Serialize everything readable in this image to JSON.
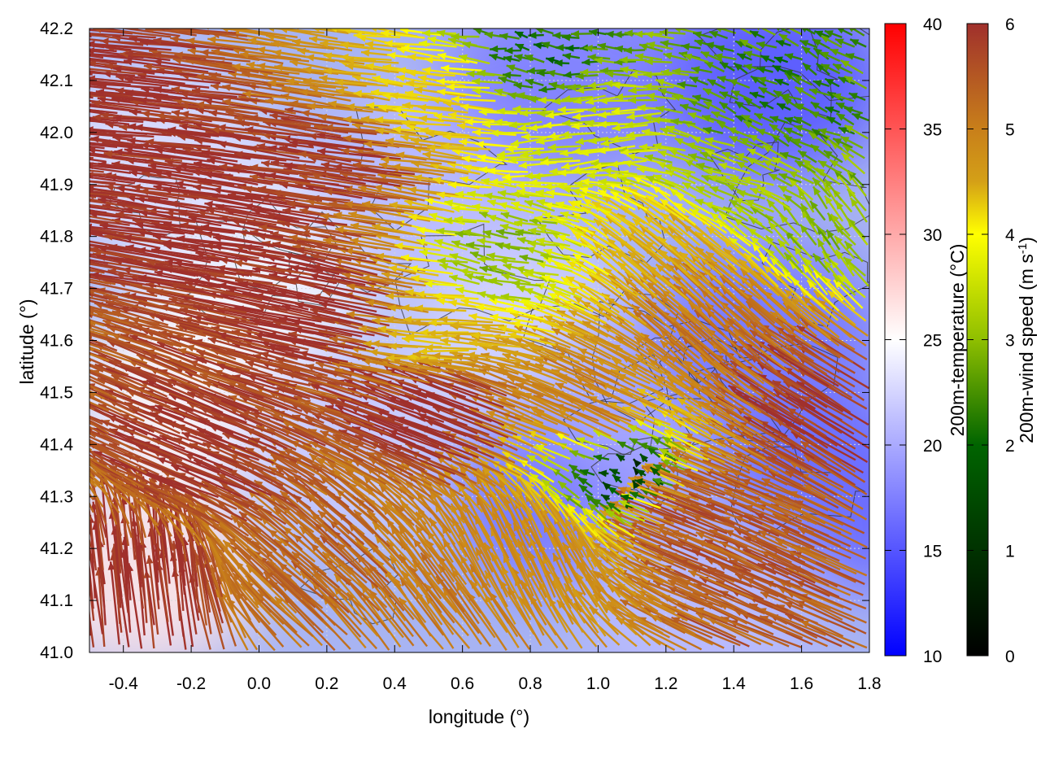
{
  "chart_data": {
    "type": "vector-field",
    "xlabel": "longitude (°)",
    "ylabel": "latitude (°)",
    "xlim": [
      -0.5,
      1.8
    ],
    "ylim": [
      41.0,
      42.2
    ],
    "xticks": [
      "-0.4",
      "-0.2",
      "0.0",
      "0.2",
      "0.4",
      "0.6",
      "0.8",
      "1.0",
      "1.2",
      "1.4",
      "1.6",
      "1.8"
    ],
    "xtick_values": [
      -0.4,
      -0.2,
      0.0,
      0.2,
      0.4,
      0.6,
      0.8,
      1.0,
      1.2,
      1.4,
      1.6,
      1.8
    ],
    "yticks": [
      "41.0",
      "41.1",
      "41.2",
      "41.3",
      "41.4",
      "41.5",
      "41.6",
      "41.7",
      "41.8",
      "41.9",
      "42.0",
      "42.1",
      "42.2"
    ],
    "ytick_values": [
      41.0,
      41.1,
      41.2,
      41.3,
      41.4,
      41.5,
      41.6,
      41.7,
      41.8,
      41.9,
      42.0,
      42.1,
      42.2
    ],
    "grid": true,
    "background_field": {
      "name": "200m-temperature (°C)",
      "range": [
        10,
        40
      ],
      "ticks": [
        "10",
        "15",
        "20",
        "25",
        "30",
        "35",
        "40"
      ],
      "tick_values": [
        10,
        15,
        20,
        25,
        30,
        35,
        40
      ],
      "colormap": [
        "#0000ff",
        "#ffffff",
        "#ff0000"
      ],
      "region_estimates": [
        {
          "lon": -0.35,
          "lat": 41.15,
          "temp": 26.5
        },
        {
          "lon": -0.2,
          "lat": 41.5,
          "temp": 25.5
        },
        {
          "lon": 0.0,
          "lat": 41.75,
          "temp": 24.5
        },
        {
          "lon": -0.3,
          "lat": 41.95,
          "temp": 23
        },
        {
          "lon": 0.3,
          "lat": 41.4,
          "temp": 22
        },
        {
          "lon": 0.5,
          "lat": 41.9,
          "temp": 21
        },
        {
          "lon": 0.8,
          "lat": 41.6,
          "temp": 22.5
        },
        {
          "lon": 0.9,
          "lat": 41.3,
          "temp": 17
        },
        {
          "lon": 1.2,
          "lat": 41.5,
          "temp": 20
        },
        {
          "lon": 1.5,
          "lat": 41.6,
          "temp": 17
        },
        {
          "lon": 1.5,
          "lat": 42.1,
          "temp": 15
        },
        {
          "lon": 1.7,
          "lat": 41.3,
          "temp": 16
        },
        {
          "lon": 1.3,
          "lat": 41.1,
          "temp": 21
        },
        {
          "lon": 0.9,
          "lat": 42.1,
          "temp": 17.5
        }
      ]
    },
    "vector_field": {
      "name": "200m-wind speed (m s-1)",
      "colorbar_title": "200m-wind speed (m s",
      "colorbar_title_sup": "-1",
      "colorbar_title_end": ")",
      "range": [
        0,
        6
      ],
      "ticks": [
        "0",
        "1",
        "2",
        "3",
        "4",
        "5",
        "6"
      ],
      "tick_values": [
        0,
        1,
        2,
        3,
        4,
        5,
        6
      ],
      "colormap": [
        "#000000",
        "#006400",
        "#8fbf00",
        "#ffff00",
        "#d4a017",
        "#c87f1a",
        "#a0302c"
      ],
      "regions": [
        {
          "lon": -0.35,
          "lat": 42.05,
          "u": -6.0,
          "v": 0.6
        },
        {
          "lon": 0.0,
          "lat": 41.85,
          "u": -6.0,
          "v": 0.9
        },
        {
          "lon": 0.3,
          "lat": 41.65,
          "u": -6.0,
          "v": 1.3
        },
        {
          "lon": 0.6,
          "lat": 41.45,
          "u": -5.8,
          "v": 2.2
        },
        {
          "lon": -0.1,
          "lat": 41.35,
          "u": -5.5,
          "v": 2.2
        },
        {
          "lon": -0.35,
          "lat": 41.1,
          "u": -0.6,
          "v": 6.0
        },
        {
          "lon": 0.25,
          "lat": 41.15,
          "u": -4.0,
          "v": 3.5
        },
        {
          "lon": 0.55,
          "lat": 41.05,
          "u": -3.0,
          "v": 4.0
        },
        {
          "lon": 0.8,
          "lat": 41.15,
          "u": -2.0,
          "v": 4.2
        },
        {
          "lon": 1.05,
          "lat": 41.45,
          "u": -4.5,
          "v": 2.0
        },
        {
          "lon": 1.35,
          "lat": 41.25,
          "u": -5.2,
          "v": 2.0
        },
        {
          "lon": 1.55,
          "lat": 41.1,
          "u": -5.0,
          "v": 2.2
        },
        {
          "lon": 1.7,
          "lat": 41.45,
          "u": -5.0,
          "v": 3.0
        },
        {
          "lon": 1.4,
          "lat": 41.6,
          "u": -3.8,
          "v": 3.5
        },
        {
          "lon": 1.25,
          "lat": 41.75,
          "u": -3.0,
          "v": 2.4
        },
        {
          "lon": 0.75,
          "lat": 41.75,
          "u": -2.0,
          "v": 0.4
        },
        {
          "lon": 0.6,
          "lat": 41.6,
          "u": -3.8,
          "v": 0.2
        },
        {
          "lon": 1.0,
          "lat": 42.0,
          "u": -2.6,
          "v": -0.3
        },
        {
          "lon": 0.55,
          "lat": 42.05,
          "u": -3.5,
          "v": 0.4
        },
        {
          "lon": 1.55,
          "lat": 42.05,
          "u": -1.2,
          "v": 0.6
        },
        {
          "lon": 1.7,
          "lat": 41.8,
          "u": -1.2,
          "v": 1.6
        },
        {
          "lon": 1.45,
          "lat": 41.9,
          "u": -2.0,
          "v": 0.7
        },
        {
          "lon": 0.85,
          "lat": 42.15,
          "u": -1.2,
          "v": 0.2
        },
        {
          "lon": 1.1,
          "lat": 41.35,
          "u": -0.4,
          "v": 0.3
        },
        {
          "lon": 0.35,
          "lat": 41.95,
          "u": -5.8,
          "v": 0.8
        }
      ]
    },
    "contours": "terrain height contour lines (dark gray)"
  },
  "colors": {
    "grid": "#d8d8d8",
    "contour": "#333333",
    "frame": "#000000"
  }
}
